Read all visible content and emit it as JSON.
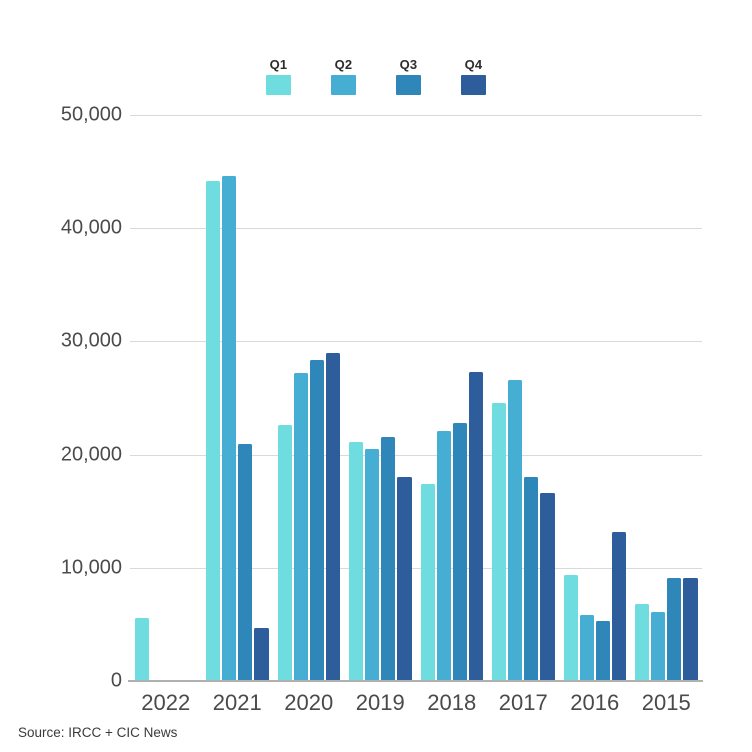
{
  "meta": {
    "source": "Source: IRCC + CIC News"
  },
  "legend": [
    {
      "label": "Q1",
      "color": "#6fdde0"
    },
    {
      "label": "Q2",
      "color": "#46aed2"
    },
    {
      "label": "Q3",
      "color": "#2f86b8"
    },
    {
      "label": "Q4",
      "color": "#2d5e9b"
    }
  ],
  "chart_data": {
    "type": "bar",
    "title": "",
    "categories": [
      "2022",
      "2021",
      "2020",
      "2019",
      "2018",
      "2017",
      "2016",
      "2015"
    ],
    "series": [
      {
        "name": "Q1",
        "color": "#6fdde0",
        "values": [
          5600,
          44200,
          22600,
          21100,
          17400,
          24600,
          9400,
          6800
        ]
      },
      {
        "name": "Q2",
        "color": "#46aed2",
        "values": [
          null,
          44600,
          27200,
          20500,
          22100,
          26600,
          5800,
          6100
        ]
      },
      {
        "name": "Q3",
        "color": "#2f86b8",
        "values": [
          null,
          20900,
          28400,
          21600,
          22800,
          18000,
          5300,
          9100
        ]
      },
      {
        "name": "Q4",
        "color": "#2d5e9b",
        "values": [
          null,
          4700,
          29000,
          18000,
          27300,
          16600,
          13200,
          9100
        ]
      }
    ],
    "ylim": [
      0,
      50000
    ],
    "yticks": [
      0,
      10000,
      20000,
      30000,
      40000,
      50000
    ],
    "ytick_labels": [
      "0",
      "10,000",
      "20,000",
      "30,000",
      "40,000",
      "50,000"
    ],
    "grid": true,
    "legend_position": "top",
    "axis_colors": {
      "gridline": "#d9d9d9",
      "baseline": "#b0b0b0",
      "tick_text": "#4b4b4b"
    }
  }
}
